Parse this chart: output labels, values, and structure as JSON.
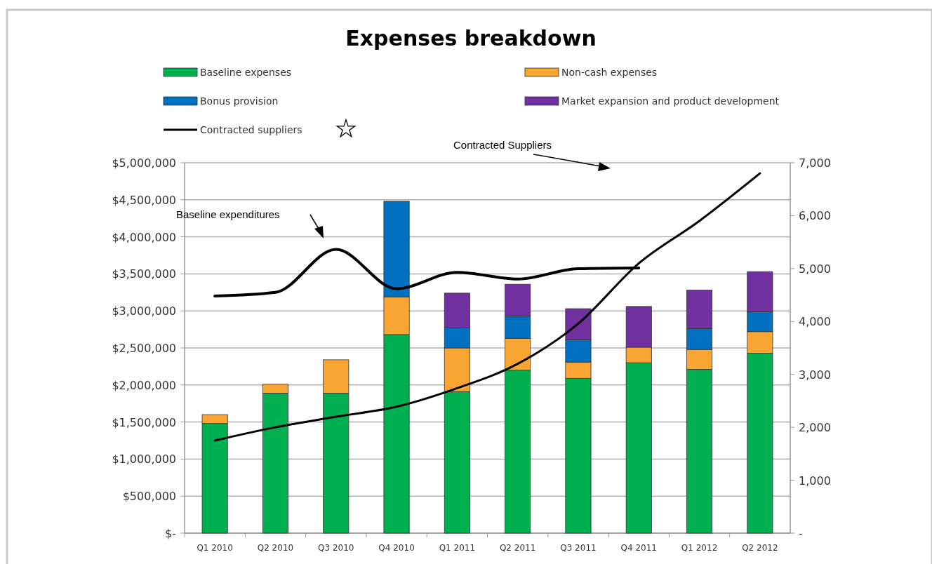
{
  "chart_data": {
    "type": "bar",
    "title": "Expenses breakdown",
    "stacked": true,
    "categories": [
      "Q1 2010",
      "Q2 2010",
      "Q3 2010",
      "Q4 2010",
      "Q1 2011",
      "Q2 2011",
      "Q3 2011",
      "Q4 2011",
      "Q1 2012",
      "Q2 2012"
    ],
    "series": [
      {
        "name": "Baseline expenses",
        "color": "#00b050",
        "values": [
          1480000,
          1890000,
          1890000,
          2680000,
          1910000,
          2200000,
          2090000,
          2300000,
          2210000,
          2430000
        ]
      },
      {
        "name": "Non-cash expenses",
        "color": "#f9a533",
        "values": [
          120000,
          120000,
          450000,
          510000,
          590000,
          430000,
          220000,
          210000,
          270000,
          290000
        ]
      },
      {
        "name": "Bonus provision",
        "color": "#0070c0",
        "values": [
          null,
          null,
          null,
          1290000,
          270000,
          300000,
          300000,
          null,
          280000,
          270000
        ]
      },
      {
        "name": "Market expansion and product development",
        "color": "#7030a0",
        "values": [
          null,
          null,
          null,
          null,
          470000,
          430000,
          420000,
          550000,
          520000,
          540000
        ]
      },
      {
        "name": "Contracted suppliers",
        "type": "line",
        "axis": "y2",
        "color": "#000000",
        "values": [
          1750,
          2000,
          2200,
          2390,
          2740,
          3200,
          3960,
          5100,
          5900,
          6800
        ]
      },
      {
        "type": "line",
        "color": "#000000",
        "values": [
          3200000,
          3250000,
          3830000,
          3300000,
          3520000,
          3430000,
          3570000,
          3580000,
          null,
          null
        ]
      }
    ],
    "ylim": [
      0,
      5000000
    ],
    "yticks": [
      {
        "value": 0,
        "label": "$-"
      },
      {
        "value": 500000,
        "label": "$500,000"
      },
      {
        "value": 1000000,
        "label": "$1,000,000"
      },
      {
        "value": 1500000,
        "label": "$1,500,000"
      },
      {
        "value": 2000000,
        "label": "$2,000,000"
      },
      {
        "value": 2500000,
        "label": "$2,500,000"
      },
      {
        "value": 3000000,
        "label": "$3,000,000"
      },
      {
        "value": 3500000,
        "label": "$3,500,000"
      },
      {
        "value": 4000000,
        "label": "$4,000,000"
      },
      {
        "value": 4500000,
        "label": "$4,500,000"
      },
      {
        "value": 5000000,
        "label": "$5,000,000"
      }
    ],
    "y2lim": [
      0,
      7000
    ],
    "y2ticks": [
      {
        "value": 0,
        "label": "-"
      },
      {
        "value": 1000,
        "label": "1,000"
      },
      {
        "value": 2000,
        "label": "2,000"
      },
      {
        "value": 3000,
        "label": "3,000"
      },
      {
        "value": 4000,
        "label": "4,000"
      },
      {
        "value": 5000,
        "label": "5,000"
      },
      {
        "value": 6000,
        "label": "6,000"
      },
      {
        "value": 7000,
        "label": "7,000"
      }
    ],
    "grid": "y",
    "legend": "top",
    "annotations": [
      "Baseline expenditures",
      "Contracted Suppliers"
    ]
  }
}
